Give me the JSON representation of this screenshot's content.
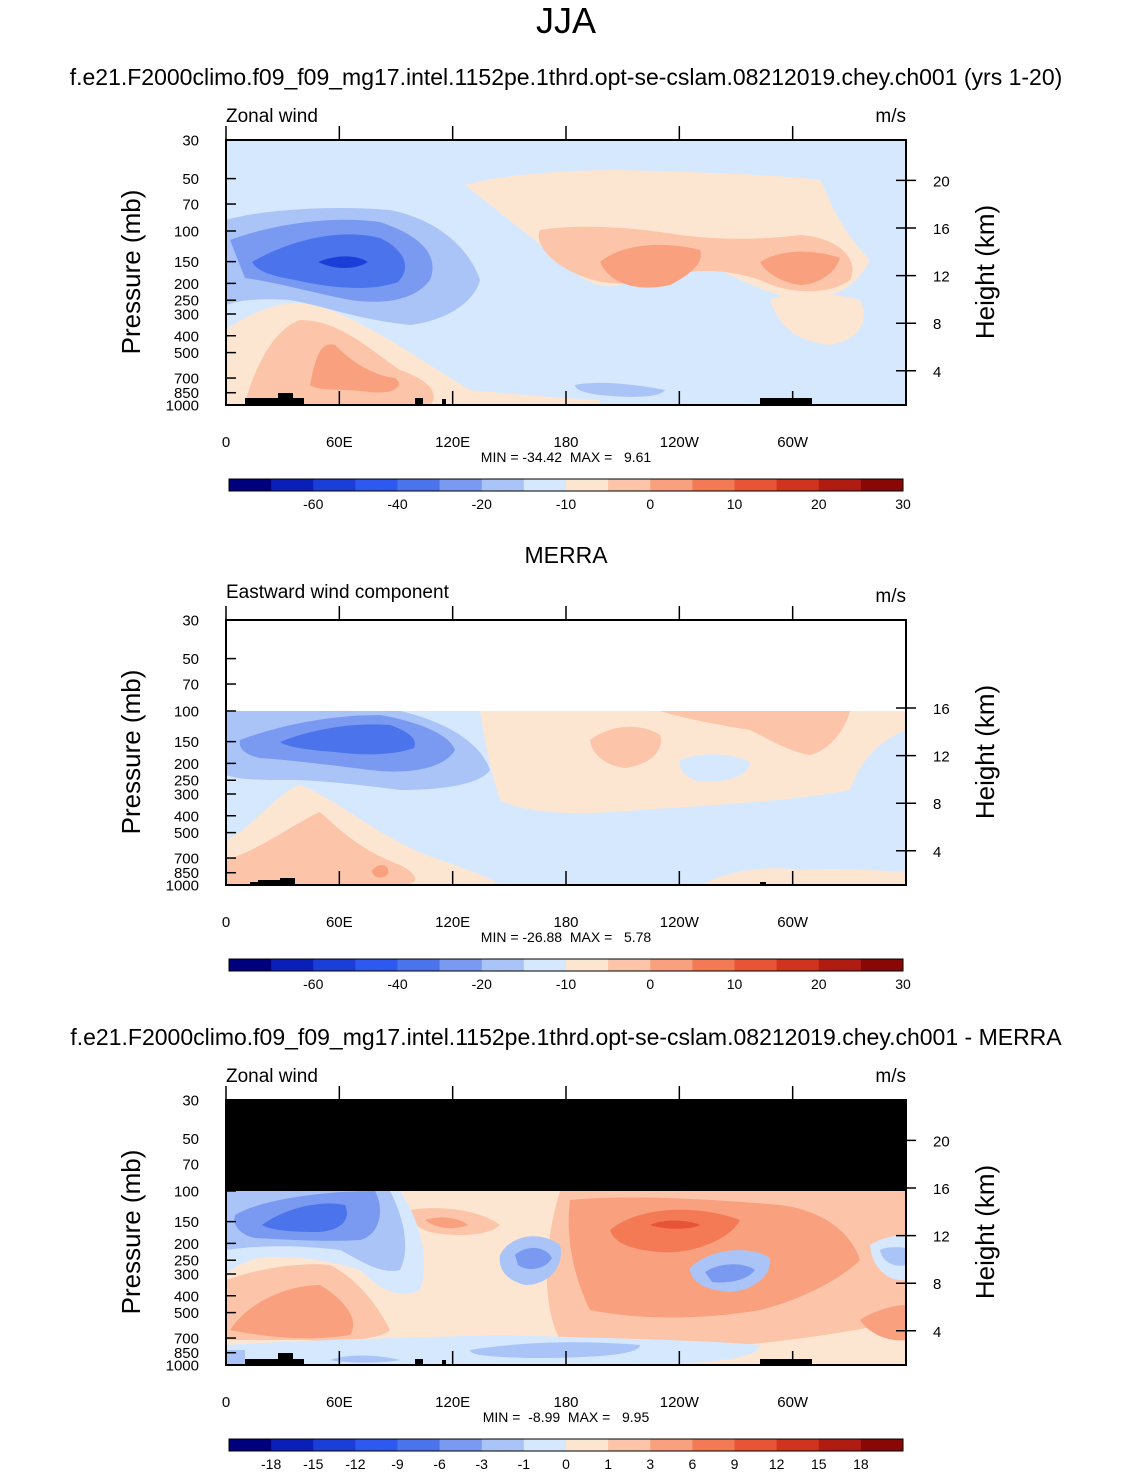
{
  "page_title": "JJA",
  "chart_data": [
    {
      "type": "heatmap",
      "title": "f.e21.F2000climo.f09_f09_mg17.intel.1152pe.1thrd.opt-se-cslam.08212019.chey.ch001 (yrs 1-20)",
      "left_label": "Zonal wind",
      "units": "m/s",
      "ylabel": "Pressure (mb)",
      "ylabel_right": "Height (km)",
      "y_ticks": [
        "30",
        "50",
        "70",
        "100",
        "150",
        "200",
        "250",
        "300",
        "400",
        "500",
        "700",
        "850",
        "1000"
      ],
      "y_right_ticks": [
        "20",
        "16",
        "12",
        "8",
        "4"
      ],
      "x_ticks": [
        "0",
        "60E",
        "120E",
        "180",
        "120W",
        "60W"
      ],
      "stats": "MIN = -34.42  MAX =   9.61",
      "colorbar_labels": [
        "-60",
        "-40",
        "-20",
        "-10",
        "0",
        "10",
        "20",
        "30"
      ],
      "colorbar_colors": [
        "#00007f",
        "#0a1fb8",
        "#1c3ed8",
        "#2d59f0",
        "#4a73ec",
        "#7a9af2",
        "#aac4f7",
        "#d6e8fd",
        "#fde6d1",
        "#fcc4a8",
        "#f9a07f",
        "#f47a55",
        "#e85536",
        "#d0331e",
        "#b01c12",
        "#8a0707"
      ],
      "structures": [
        {
          "feature": "easterly jet core upper troposphere",
          "lon_range": "10E-90E",
          "pressure_mb": 150,
          "min_value": -34.42
        },
        {
          "feature": "upper-level westerlies",
          "lon_range": "150E-90W",
          "pressure_mb": 150,
          "value_range": [
            5,
            10
          ]
        },
        {
          "feature": "low-level westerly jet",
          "lon_range": "40E-90E",
          "pressure_mb": 700,
          "value_range": [
            5,
            10
          ]
        }
      ]
    },
    {
      "type": "heatmap",
      "title": "MERRA",
      "left_label": "Eastward wind component",
      "units": "m/s",
      "ylabel": "Pressure (mb)",
      "ylabel_right": "Height (km)",
      "y_ticks": [
        "30",
        "50",
        "70",
        "100",
        "150",
        "200",
        "250",
        "300",
        "400",
        "500",
        "700",
        "850",
        "1000"
      ],
      "y_right_ticks": [
        "16",
        "12",
        "8",
        "4"
      ],
      "x_ticks": [
        "0",
        "60E",
        "120E",
        "180",
        "120W",
        "60W"
      ],
      "stats": "MIN = -26.88  MAX =   5.78",
      "colorbar_labels": [
        "-60",
        "-40",
        "-20",
        "-10",
        "0",
        "10",
        "20",
        "30"
      ],
      "colorbar_colors": [
        "#00007f",
        "#0a1fb8",
        "#1c3ed8",
        "#2d59f0",
        "#4a73ec",
        "#7a9af2",
        "#aac4f7",
        "#d6e8fd",
        "#fde6d1",
        "#fcc4a8",
        "#f9a07f",
        "#f47a55",
        "#e85536",
        "#d0331e",
        "#b01c12",
        "#8a0707"
      ],
      "structures": [
        {
          "feature": "easterly jet core",
          "lon_range": "20E-100E",
          "pressure_mb": 150,
          "min_value": -26.88
        },
        {
          "feature": "no data above 100 mb",
          "pressure_mb_range": [
            30,
            100
          ]
        }
      ]
    },
    {
      "type": "heatmap",
      "title": "f.e21.F2000climo.f09_f09_mg17.intel.1152pe.1thrd.opt-se-cslam.08212019.chey.ch001 - MERRA",
      "left_label": "Zonal wind",
      "units": "m/s",
      "ylabel": "Pressure (mb)",
      "ylabel_right": "Height (km)",
      "y_ticks": [
        "30",
        "50",
        "70",
        "100",
        "150",
        "200",
        "250",
        "300",
        "400",
        "500",
        "700",
        "850",
        "1000"
      ],
      "y_right_ticks": [
        "20",
        "16",
        "12",
        "8",
        "4"
      ],
      "x_ticks": [
        "0",
        "60E",
        "120E",
        "180",
        "120W",
        "60W"
      ],
      "stats": "MIN =  -8.99  MAX =   9.95",
      "colorbar_labels": [
        "-18",
        "-15",
        "-12",
        "-9",
        "-6",
        "-3",
        "-1",
        "0",
        "1",
        "3",
        "6",
        "9",
        "12",
        "15",
        "18"
      ],
      "colorbar_colors": [
        "#00007f",
        "#0a1fb8",
        "#1c3ed8",
        "#2d59f0",
        "#4a73ec",
        "#7a9af2",
        "#aac4f7",
        "#d6e8fd",
        "#fde6d1",
        "#fcc4a8",
        "#f9a07f",
        "#f47a55",
        "#e85536",
        "#d0331e",
        "#b01c12",
        "#8a0707"
      ],
      "structures": [
        {
          "feature": "masked region above 100 mb",
          "pressure_mb_range": [
            30,
            100
          ]
        },
        {
          "feature": "positive difference max",
          "lon_range": "150W-110W",
          "pressure_mb": 150,
          "max_value": 9.95
        }
      ]
    }
  ]
}
